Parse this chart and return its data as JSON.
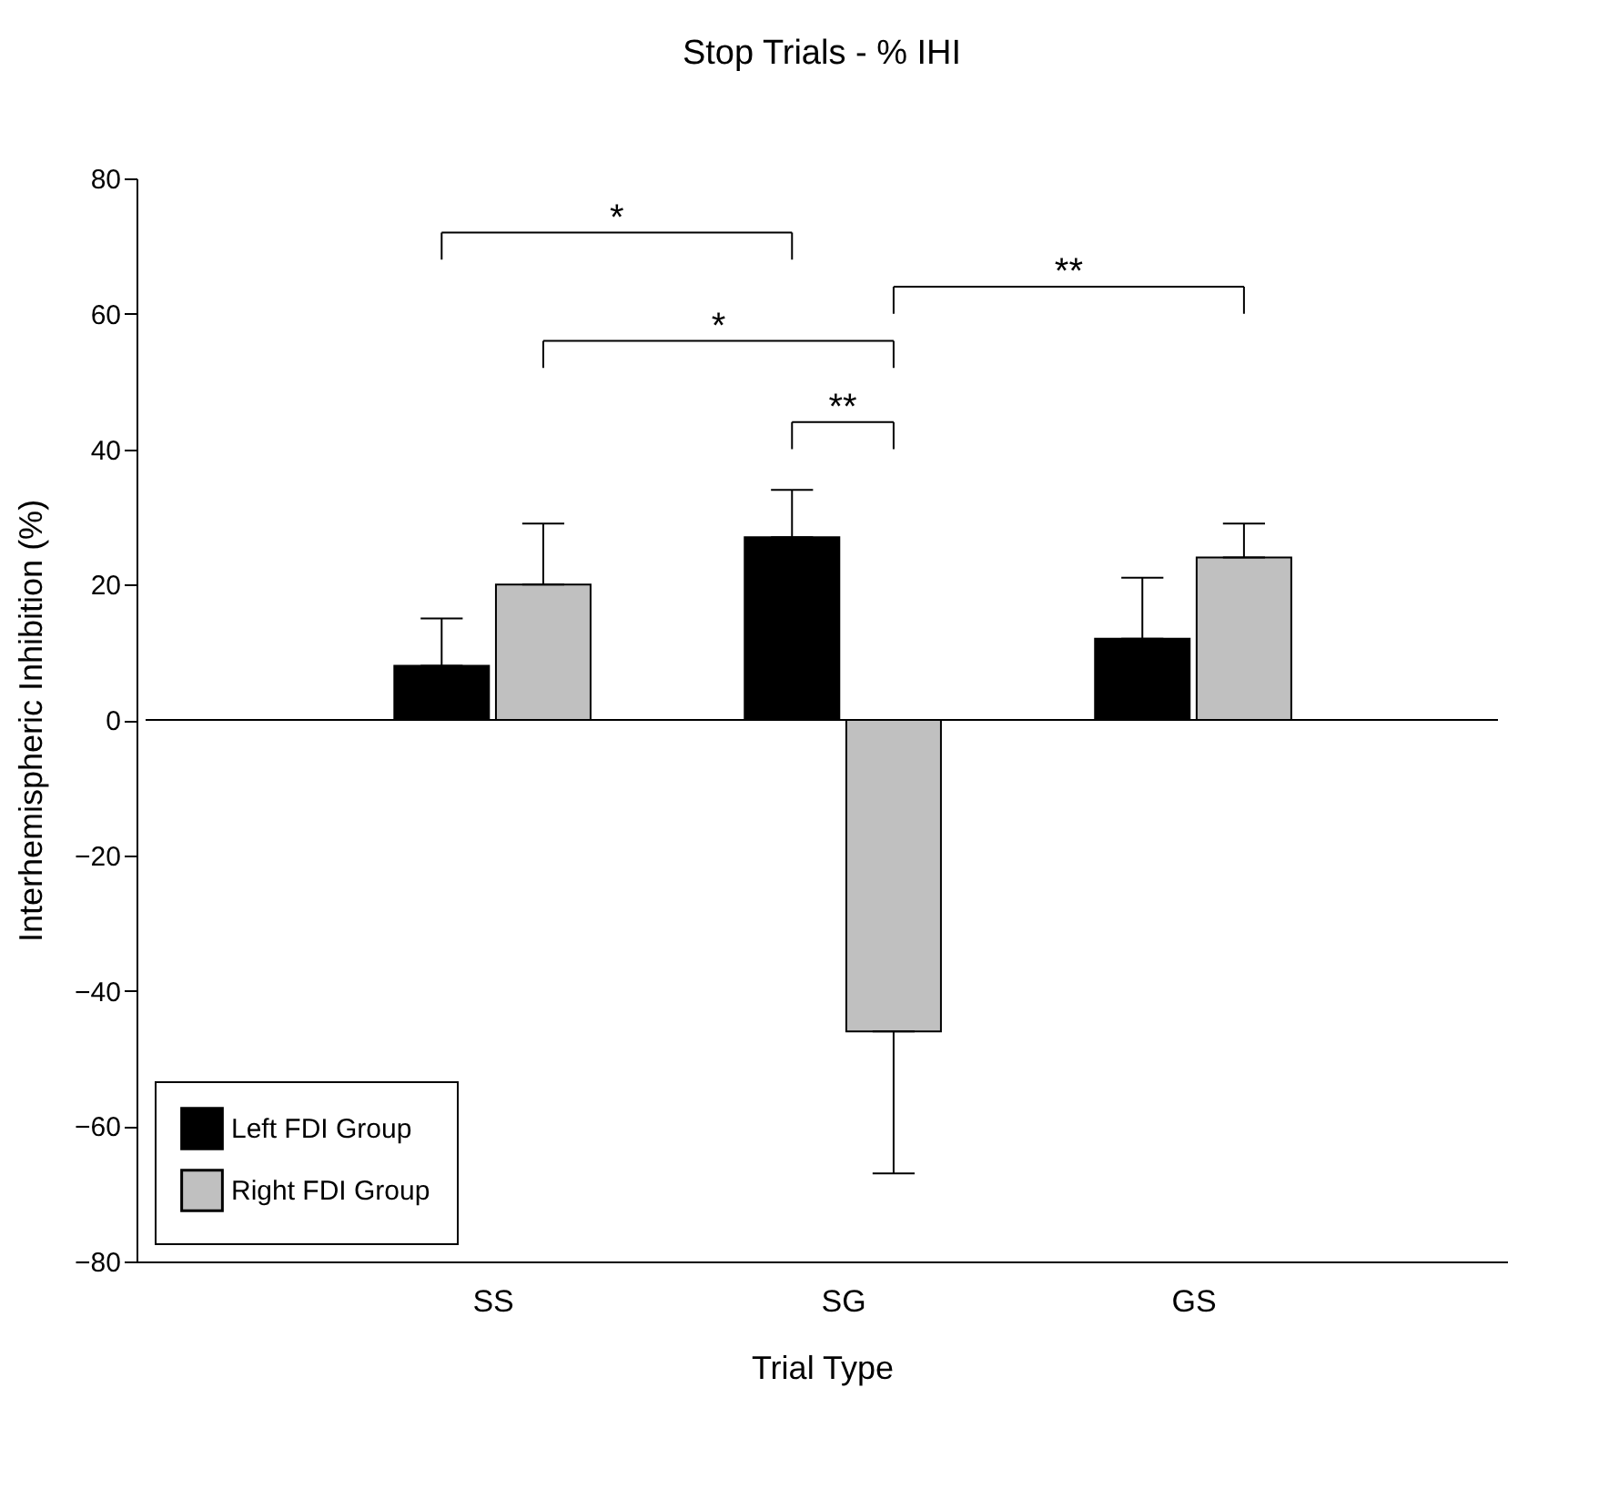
{
  "chart_data": {
    "type": "bar",
    "title": "Stop Trials - % IHI",
    "xlabel": "Trial Type",
    "ylabel": "Interhemispheric Inhibition (%)",
    "categories": [
      "SS",
      "SG",
      "GS"
    ],
    "series": [
      {
        "name": "Left FDI Group",
        "color": "#000000",
        "values": [
          8,
          27,
          12
        ],
        "errors": [
          [
            8,
            15
          ],
          [
            27,
            34
          ],
          [
            12,
            21
          ]
        ]
      },
      {
        "name": "Right FDI Group",
        "color": "#c0c0c0",
        "values": [
          20,
          -46,
          24
        ],
        "errors": [
          [
            20,
            29
          ],
          [
            -67,
            -46
          ],
          [
            24,
            29
          ]
        ]
      }
    ],
    "ylim": [
      -80,
      80
    ],
    "yticks": [
      -80,
      -60,
      -40,
      -20,
      0,
      20,
      40,
      60,
      80
    ],
    "ref_lines": [
      {
        "axis": "y",
        "value": 0,
        "label": null
      }
    ],
    "annotations": [
      "*",
      "*",
      "**",
      "**"
    ],
    "grid": false,
    "legend": "bottom left"
  }
}
